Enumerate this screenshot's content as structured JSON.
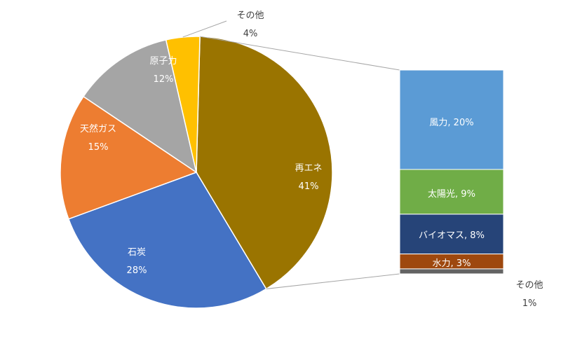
{
  "chart_data": {
    "type": "bar-of-pie",
    "pie": {
      "slices": [
        {
          "name": "再エネ",
          "pct_label": "41%",
          "value": 41,
          "color": "#9a7400"
        },
        {
          "name": "石炭",
          "pct_label": "28%",
          "value": 28,
          "color": "#4472c4"
        },
        {
          "name": "天然ガス",
          "pct_label": "15%",
          "value": 15,
          "color": "#ed7d31"
        },
        {
          "name": "原子力",
          "pct_label": "12%",
          "value": 12,
          "color": "#a5a5a5"
        },
        {
          "name": "その他",
          "pct_label": "4%",
          "value": 4,
          "color": "#ffc000"
        }
      ]
    },
    "bar": {
      "segments": [
        {
          "label": "風力, 20%",
          "value": 20,
          "color": "#5b9bd5"
        },
        {
          "label": "太陽光, 9%",
          "value": 9,
          "color": "#70ad47"
        },
        {
          "label": "バイオマス, 8%",
          "value": 8,
          "color": "#264478"
        },
        {
          "label": "水力, 3%",
          "value": 3,
          "color": "#9e480e"
        },
        {
          "label": "",
          "value": 1,
          "color": "#636363"
        }
      ],
      "other_name": "その他",
      "other_pct": "1%"
    }
  }
}
